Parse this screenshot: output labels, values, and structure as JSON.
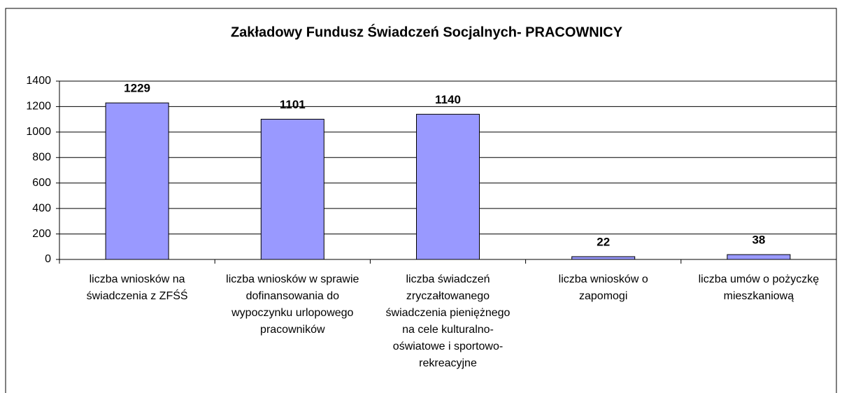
{
  "chart_data": {
    "type": "bar",
    "title": "Zakładowy Fundusz Świadczeń Socjalnych- PRACOWNICY",
    "categories": [
      "liczba wniosków na świadczenia z ZFŚŚ",
      "liczba wniosków w sprawie dofinansowania do wypoczynku urlopowego pracowników",
      "liczba świadczeń zryczałtowanego świadczenia pieniężnego na cele kulturalno-oświatowe i sportowo-rekreacyjne",
      "liczba wniosków o zapomogi",
      "liczba umów o pożyczkę mieszkaniową"
    ],
    "values": [
      1229,
      1101,
      1140,
      22,
      38
    ],
    "color": "#9999ff",
    "ylim": [
      0,
      1400
    ],
    "yticks": [
      0,
      200,
      400,
      600,
      800,
      1000,
      1200,
      1400
    ],
    "grid": true
  }
}
